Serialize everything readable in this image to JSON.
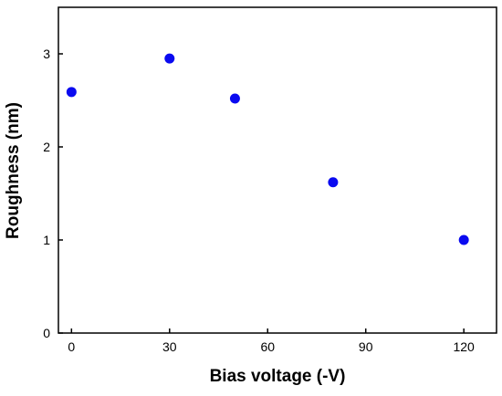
{
  "chart_data": {
    "type": "scatter",
    "title": "",
    "xlabel": "Bias voltage (-V)",
    "ylabel": "Roughness (nm)",
    "xlim": [
      -4,
      130
    ],
    "ylim": [
      0,
      3.5
    ],
    "xticks": [
      0,
      30,
      60,
      90,
      120
    ],
    "yticks": [
      0,
      1,
      2,
      3
    ],
    "xtick_labels": [
      "0",
      "30",
      "60",
      "90",
      "120"
    ],
    "ytick_labels": [
      "0",
      "1",
      "2",
      "3"
    ],
    "grid": false,
    "legend": "none",
    "marker_color": "#0a0af0",
    "series": [
      {
        "points": [
          {
            "x": 0,
            "y": 2.59
          },
          {
            "x": 30,
            "y": 2.95
          },
          {
            "x": 50,
            "y": 2.52
          },
          {
            "x": 80,
            "y": 1.62
          },
          {
            "x": 120,
            "y": 1.0
          }
        ]
      }
    ]
  }
}
